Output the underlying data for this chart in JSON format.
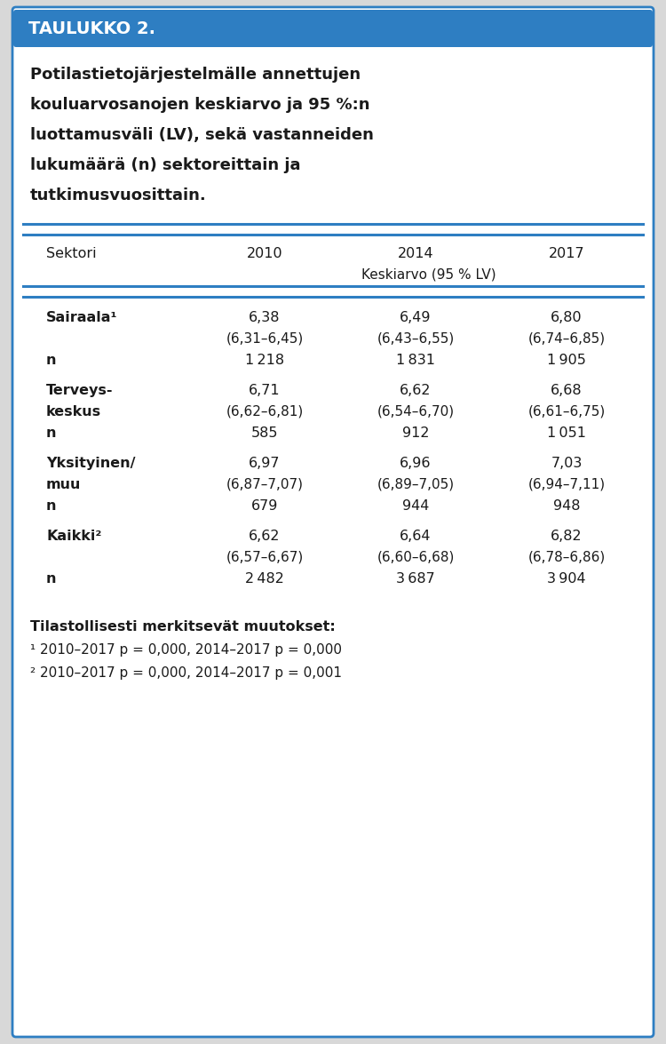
{
  "title_label": "TAULUKKO 2.",
  "title_bg_color": "#2E7EC2",
  "title_text_color": "#FFFFFF",
  "subtitle_lines": [
    "Potilastietojärjestelmälle annettujen",
    "kouluarvosanojen keskiarvo ja 95 %:n",
    "luottamusväli (LV), sekä vastanneiden",
    "lukumäärä (n) sektoreittain ja",
    "tutkimusvuosittain."
  ],
  "col_headers": [
    "Sektori",
    "2010",
    "2014",
    "2017"
  ],
  "col_subheader": "Keskiarvo (95 % LV)",
  "rows": [
    {
      "sector_lines": [
        "Sairaala¹"
      ],
      "data": [
        {
          "mean": "6,38",
          "ci": "(6,31–6,45)"
        },
        {
          "mean": "6,49",
          "ci": "(6,43–6,55)"
        },
        {
          "mean": "6,80",
          "ci": "(6,74–6,85)"
        }
      ],
      "n": [
        "1 218",
        "1 831",
        "1 905"
      ]
    },
    {
      "sector_lines": [
        "Terveys-",
        "keskus"
      ],
      "data": [
        {
          "mean": "6,71",
          "ci": "(6,62–6,81)"
        },
        {
          "mean": "6,62",
          "ci": "(6,54–6,70)"
        },
        {
          "mean": "6,68",
          "ci": "(6,61–6,75)"
        }
      ],
      "n": [
        "585",
        "912",
        "1 051"
      ]
    },
    {
      "sector_lines": [
        "Yksityinen/",
        "muu"
      ],
      "data": [
        {
          "mean": "6,97",
          "ci": "(6,87–7,07)"
        },
        {
          "mean": "6,96",
          "ci": "(6,89–7,05)"
        },
        {
          "mean": "7,03",
          "ci": "(6,94–7,11)"
        }
      ],
      "n": [
        "679",
        "944",
        "948"
      ]
    },
    {
      "sector_lines": [
        "Kaikki²"
      ],
      "data": [
        {
          "mean": "6,62",
          "ci": "(6,57–6,67)"
        },
        {
          "mean": "6,64",
          "ci": "(6,60–6,68)"
        },
        {
          "mean": "6,82",
          "ci": "(6,78–6,86)"
        }
      ],
      "n": [
        "2 482",
        "3 687",
        "3 904"
      ]
    }
  ],
  "footnote_lines": [
    "Tilastollisesti merkitsevät muutokset:",
    "¹ 2010–2017 p = 0,000, 2014–2017 p = 0,000",
    "² 2010–2017 p = 0,000, 2014–2017 p = 0,001"
  ],
  "border_color": "#2E7EC2",
  "line_color": "#2E7EC2",
  "text_color": "#1a1a1a",
  "bg_color": "#FFFFFF",
  "outer_bg": "#D8D8D8"
}
